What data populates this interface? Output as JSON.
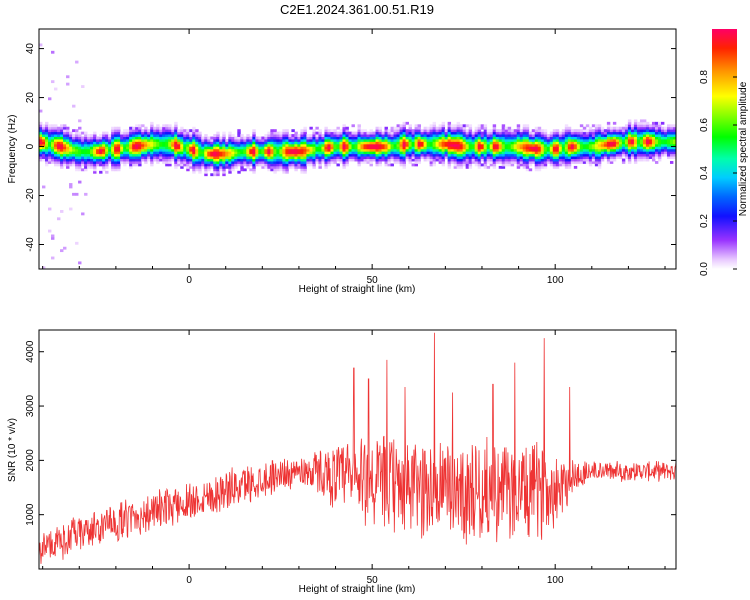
{
  "title": "C2E1.2024.361.00.51.R19",
  "chart_data": [
    {
      "type": "heatmap",
      "xlabel": "Height of straight line (km)",
      "ylabel": "Frequency (Hz)",
      "xlim": [
        -41,
        133
      ],
      "ylim": [
        -50,
        48
      ],
      "xticks": [
        "0",
        "50",
        "100"
      ],
      "xtick_values": [
        0,
        50,
        100
      ],
      "yticks": [
        "-40",
        "-20",
        "0",
        "20",
        "40"
      ],
      "ytick_values": [
        -40,
        -20,
        0,
        20,
        40
      ],
      "colorbar": {
        "label": "Normalized spectral amplitude",
        "range": [
          0,
          1
        ],
        "ticks": [
          "0.0",
          "0.2",
          "0.4",
          "0.6",
          "0.8"
        ],
        "tick_values": [
          0.0,
          0.2,
          0.4,
          0.6,
          0.8
        ]
      },
      "ridge": {
        "x": [
          -41,
          -35,
          -30,
          -25,
          -20,
          -15,
          -10,
          -5,
          0,
          5,
          10,
          15,
          20,
          25,
          30,
          35,
          40,
          45,
          50,
          55,
          60,
          65,
          70,
          75,
          80,
          85,
          90,
          95,
          100,
          105,
          110,
          115,
          120,
          125,
          133
        ],
        "freq": [
          2,
          0,
          -2,
          -2,
          -1,
          0,
          1,
          1,
          -1,
          -3,
          -3,
          -2,
          -2,
          -2,
          -2,
          -1,
          0,
          0,
          0,
          0,
          1,
          1,
          1,
          0,
          0,
          0,
          0,
          -1,
          -1,
          0,
          0,
          1,
          2,
          2,
          2
        ]
      }
    },
    {
      "type": "line",
      "xlabel": "Height of straight line (km)",
      "ylabel": "SNR (10 * v/v)",
      "xlim": [
        -41,
        133
      ],
      "ylim": [
        0,
        4400
      ],
      "xticks": [
        "0",
        "50",
        "100"
      ],
      "xtick_values": [
        0,
        50,
        100
      ],
      "yticks": [
        "1000",
        "2000",
        "3000",
        "4000"
      ],
      "ytick_values": [
        1000,
        2000,
        3000,
        4000
      ],
      "color": "#ee3333",
      "envelope": {
        "x": [
          -41,
          -35,
          -30,
          -25,
          -20,
          -15,
          -10,
          -5,
          0,
          5,
          10,
          15,
          20,
          25,
          30,
          35,
          40,
          45,
          50,
          55,
          60,
          65,
          70,
          75,
          80,
          85,
          90,
          95,
          100,
          105,
          110,
          115,
          120,
          125,
          133
        ],
        "base": [
          400,
          500,
          650,
          750,
          850,
          950,
          1050,
          1150,
          1250,
          1350,
          1450,
          1550,
          1650,
          1750,
          1800,
          1800,
          1700,
          1650,
          1600,
          1550,
          1500,
          1500,
          1450,
          1450,
          1450,
          1400,
          1400,
          1450,
          1500,
          1700,
          1800,
          1800,
          1800,
          1800,
          1800
        ],
        "amp": [
          350,
          350,
          380,
          380,
          400,
          400,
          400,
          400,
          420,
          420,
          420,
          400,
          380,
          350,
          300,
          450,
          650,
          900,
          1000,
          1000,
          1000,
          1050,
          1050,
          1050,
          1050,
          1000,
          1000,
          1000,
          800,
          400,
          220,
          200,
          200,
          200,
          200
        ]
      },
      "peaks": [
        {
          "x": 45,
          "y": 3700
        },
        {
          "x": 49,
          "y": 3500
        },
        {
          "x": 54,
          "y": 3850
        },
        {
          "x": 59,
          "y": 3350
        },
        {
          "x": 67,
          "y": 4350
        },
        {
          "x": 72,
          "y": 3250
        },
        {
          "x": 83,
          "y": 3400
        },
        {
          "x": 89,
          "y": 3800
        },
        {
          "x": 97,
          "y": 4250
        },
        {
          "x": 104,
          "y": 3350
        }
      ]
    }
  ]
}
